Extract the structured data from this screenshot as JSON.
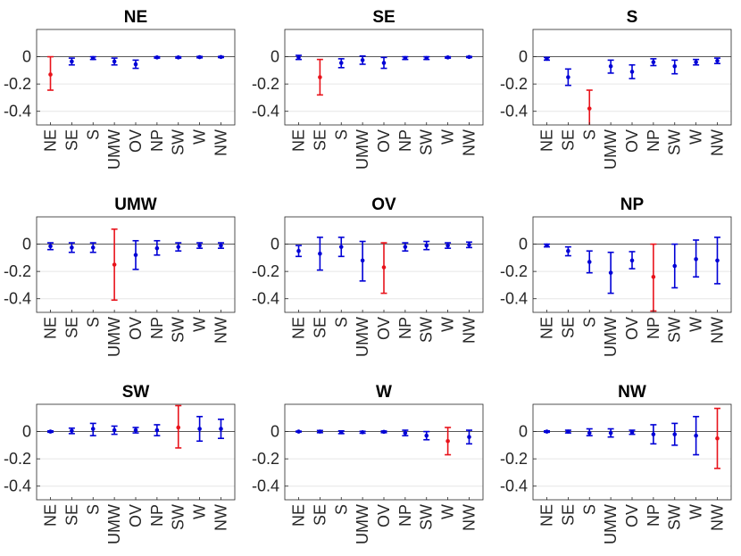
{
  "colors": {
    "normal": "#0000d6",
    "highlight": "#e8131b"
  },
  "chart_data": [
    {
      "type": "errorbar",
      "title": "NE",
      "highlight": "NE",
      "categories": [
        "NE",
        "SE",
        "S",
        "UMW",
        "OV",
        "NP",
        "SW",
        "W",
        "NW"
      ],
      "ylim": [
        -0.5,
        0.2
      ],
      "yticks": [
        "0",
        "-0.2",
        "-0.4"
      ],
      "ytick_values": [
        0,
        -0.2,
        -0.4
      ],
      "values": [
        -0.13,
        -0.035,
        -0.01,
        -0.035,
        -0.055,
        -0.005,
        -0.005,
        -0.003,
        -0.002
      ],
      "lower": [
        -0.245,
        -0.06,
        -0.02,
        -0.06,
        -0.085,
        -0.01,
        -0.01,
        -0.008,
        -0.006
      ],
      "upper": [
        0.0,
        -0.01,
        0.0,
        -0.01,
        -0.025,
        0.0,
        0.0,
        0.002,
        0.002
      ]
    },
    {
      "type": "errorbar",
      "title": "SE",
      "highlight": "SE",
      "categories": [
        "NE",
        "SE",
        "S",
        "UMW",
        "OV",
        "NP",
        "SW",
        "W",
        "NW"
      ],
      "ylim": [
        -0.5,
        0.2
      ],
      "yticks": [
        "0",
        "-0.2",
        "-0.4"
      ],
      "ytick_values": [
        0,
        -0.2,
        -0.4
      ],
      "values": [
        -0.005,
        -0.15,
        -0.045,
        -0.025,
        -0.045,
        -0.01,
        -0.01,
        -0.005,
        -0.002
      ],
      "lower": [
        -0.02,
        -0.28,
        -0.08,
        -0.055,
        -0.085,
        -0.02,
        -0.02,
        -0.01,
        -0.006
      ],
      "upper": [
        0.01,
        -0.02,
        -0.015,
        0.005,
        -0.005,
        0.0,
        0.0,
        0.0,
        0.002
      ]
    },
    {
      "type": "errorbar",
      "title": "S",
      "highlight": "S",
      "categories": [
        "NE",
        "SE",
        "S",
        "UMW",
        "OV",
        "NP",
        "SW",
        "W",
        "NW"
      ],
      "ylim": [
        -0.5,
        0.2
      ],
      "yticks": [
        "0",
        "-0.2",
        "-0.4"
      ],
      "ytick_values": [
        0,
        -0.2,
        -0.4
      ],
      "values": [
        -0.015,
        -0.15,
        -0.38,
        -0.07,
        -0.11,
        -0.04,
        -0.07,
        -0.04,
        -0.03
      ],
      "lower": [
        -0.025,
        -0.21,
        -0.51,
        -0.12,
        -0.16,
        -0.065,
        -0.125,
        -0.06,
        -0.05
      ],
      "upper": [
        -0.005,
        -0.09,
        -0.245,
        -0.025,
        -0.06,
        -0.015,
        -0.025,
        -0.02,
        -0.01
      ]
    },
    {
      "type": "errorbar",
      "title": "UMW",
      "highlight": "UMW",
      "categories": [
        "NE",
        "SE",
        "S",
        "UMW",
        "OV",
        "NP",
        "SW",
        "W",
        "NW"
      ],
      "ylim": [
        -0.5,
        0.2
      ],
      "yticks": [
        "0",
        "-0.2",
        "-0.4"
      ],
      "ytick_values": [
        0,
        -0.2,
        -0.4
      ],
      "values": [
        -0.015,
        -0.025,
        -0.025,
        -0.15,
        -0.08,
        -0.03,
        -0.02,
        -0.01,
        -0.01
      ],
      "lower": [
        -0.04,
        -0.06,
        -0.06,
        -0.41,
        -0.185,
        -0.08,
        -0.05,
        -0.03,
        -0.03
      ],
      "upper": [
        0.01,
        0.01,
        0.01,
        0.11,
        0.025,
        0.025,
        0.01,
        0.01,
        0.01
      ]
    },
    {
      "type": "errorbar",
      "title": "OV",
      "highlight": "OV",
      "categories": [
        "NE",
        "SE",
        "S",
        "UMW",
        "OV",
        "NP",
        "SW",
        "W",
        "NW"
      ],
      "ylim": [
        -0.5,
        0.2
      ],
      "yticks": [
        "0",
        "-0.2",
        "-0.4"
      ],
      "ytick_values": [
        0,
        -0.2,
        -0.4
      ],
      "values": [
        -0.05,
        -0.07,
        -0.02,
        -0.12,
        -0.17,
        -0.02,
        -0.01,
        -0.01,
        -0.005
      ],
      "lower": [
        -0.09,
        -0.19,
        -0.09,
        -0.27,
        -0.36,
        -0.05,
        -0.04,
        -0.03,
        -0.025
      ],
      "upper": [
        -0.01,
        0.05,
        0.05,
        0.02,
        0.01,
        0.01,
        0.02,
        0.01,
        0.015
      ]
    },
    {
      "type": "errorbar",
      "title": "NP",
      "highlight": "NP",
      "categories": [
        "NE",
        "SE",
        "S",
        "UMW",
        "OV",
        "NP",
        "SW",
        "W",
        "NW"
      ],
      "ylim": [
        -0.5,
        0.2
      ],
      "yticks": [
        "0",
        "-0.2",
        "-0.4"
      ],
      "ytick_values": [
        0,
        -0.2,
        -0.4
      ],
      "values": [
        -0.01,
        -0.05,
        -0.13,
        -0.21,
        -0.12,
        -0.24,
        -0.16,
        -0.11,
        -0.12
      ],
      "lower": [
        -0.02,
        -0.085,
        -0.21,
        -0.36,
        -0.18,
        -0.49,
        -0.32,
        -0.24,
        -0.29
      ],
      "upper": [
        0.0,
        -0.02,
        -0.05,
        -0.06,
        -0.055,
        0.0,
        0.0,
        0.03,
        0.05
      ]
    },
    {
      "type": "errorbar",
      "title": "SW",
      "highlight": "SW",
      "categories": [
        "NE",
        "SE",
        "S",
        "UMW",
        "OV",
        "NP",
        "SW",
        "W",
        "NW"
      ],
      "ylim": [
        -0.5,
        0.2
      ],
      "yticks": [
        "0",
        "-0.2",
        "-0.4"
      ],
      "ytick_values": [
        0,
        -0.2,
        -0.4
      ],
      "values": [
        0.0,
        0.005,
        0.02,
        0.01,
        0.01,
        0.01,
        0.03,
        0.02,
        0.02
      ],
      "lower": [
        -0.005,
        -0.015,
        -0.03,
        -0.02,
        -0.01,
        -0.03,
        -0.12,
        -0.07,
        -0.05
      ],
      "upper": [
        0.005,
        0.025,
        0.06,
        0.04,
        0.03,
        0.05,
        0.19,
        0.11,
        0.09
      ]
    },
    {
      "type": "errorbar",
      "title": "W",
      "highlight": "W",
      "categories": [
        "NE",
        "SE",
        "S",
        "UMW",
        "OV",
        "NP",
        "SW",
        "W",
        "NW"
      ],
      "ylim": [
        -0.5,
        0.2
      ],
      "yticks": [
        "0",
        "-0.2",
        "-0.4"
      ],
      "ytick_values": [
        0,
        -0.2,
        -0.4
      ],
      "values": [
        0.0,
        0.0,
        -0.005,
        -0.005,
        -0.002,
        -0.01,
        -0.03,
        -0.07,
        -0.04
      ],
      "lower": [
        -0.003,
        -0.008,
        -0.015,
        -0.012,
        -0.008,
        -0.03,
        -0.06,
        -0.17,
        -0.09
      ],
      "upper": [
        0.003,
        0.008,
        0.005,
        0.002,
        0.004,
        0.01,
        0.0,
        0.03,
        0.01
      ]
    },
    {
      "type": "errorbar",
      "title": "NW",
      "highlight": "NW",
      "categories": [
        "NE",
        "SE",
        "S",
        "UMW",
        "OV",
        "NP",
        "SW",
        "W",
        "NW"
      ],
      "ylim": [
        -0.5,
        0.2
      ],
      "yticks": [
        "0",
        "-0.2",
        "-0.4"
      ],
      "ytick_values": [
        0,
        -0.2,
        -0.4
      ],
      "values": [
        0.0,
        0.0,
        -0.01,
        -0.01,
        -0.005,
        -0.02,
        -0.02,
        -0.03,
        -0.05
      ],
      "lower": [
        -0.005,
        -0.01,
        -0.03,
        -0.04,
        -0.02,
        -0.09,
        -0.1,
        -0.17,
        -0.27
      ],
      "upper": [
        0.005,
        0.01,
        0.02,
        0.02,
        0.01,
        0.05,
        0.06,
        0.11,
        0.17
      ]
    }
  ]
}
